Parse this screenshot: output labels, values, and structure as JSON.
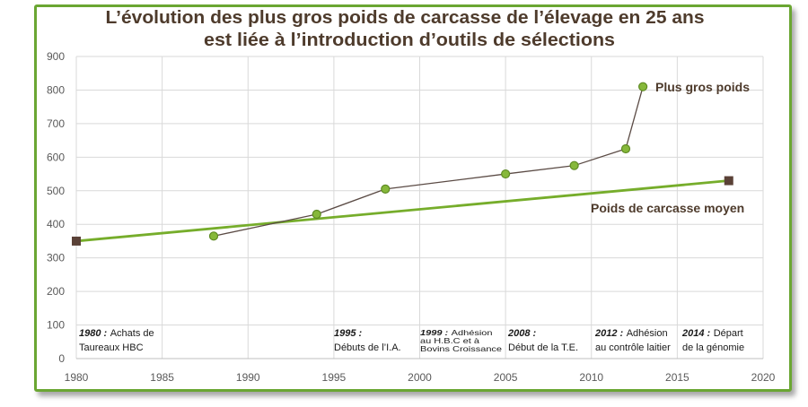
{
  "chart_data": {
    "type": "line",
    "title_lines": [
      "L’évolution des plus gros poids de carcasse de l’élevage en 25 ans",
      "est liée à l’introduction d’outils de sélections"
    ],
    "xlim": [
      1980,
      2020
    ],
    "ylim": [
      0,
      900
    ],
    "x_ticks": [
      1980,
      1985,
      1990,
      1995,
      2000,
      2005,
      2010,
      2015,
      2020
    ],
    "y_ticks": [
      0,
      100,
      200,
      300,
      400,
      500,
      600,
      700,
      800,
      900
    ],
    "grid": true,
    "legend": "inline",
    "series": [
      {
        "name": "Plus gros poids",
        "x": [
          1988,
          1994,
          1998,
          2005,
          2009,
          2012,
          2013
        ],
        "y": [
          365,
          430,
          505,
          550,
          575,
          625,
          810
        ],
        "marker": "circle",
        "line_color": "#5b4b45",
        "marker_color": "#86b83a",
        "marker_edge_color": "#5e8a22"
      },
      {
        "name": "Poids de carcasse moyen",
        "x": [
          1980,
          2018
        ],
        "y": [
          350,
          530
        ],
        "marker": "square",
        "line_color": "#76ad2b",
        "marker_color": "#5a4137"
      }
    ],
    "annotations": [
      {
        "date": "1980 :",
        "after_date": "Achats de",
        "lines": [
          "Taureaux HBC"
        ]
      },
      {
        "date": "1995 :",
        "lines": [
          "Débuts de l’I.A."
        ]
      },
      {
        "date": "1999 :",
        "after_date": "Adhésion",
        "lines": [
          "au H.B.C et à",
          "Bovins Croissance"
        ]
      },
      {
        "date": "2008 :",
        "lines": [
          "Début de la T.E."
        ]
      },
      {
        "date": "2012 :",
        "after_date": "Adhésion",
        "lines": [
          "au contrôle laitier"
        ]
      },
      {
        "date": "2014 :",
        "after_date": "Départ",
        "lines": [
          "de la génomie"
        ]
      }
    ]
  },
  "style": {
    "frame_color": "#6aa632",
    "title_color": "#4e3b2c",
    "label_color": "#4e3b2c"
  }
}
